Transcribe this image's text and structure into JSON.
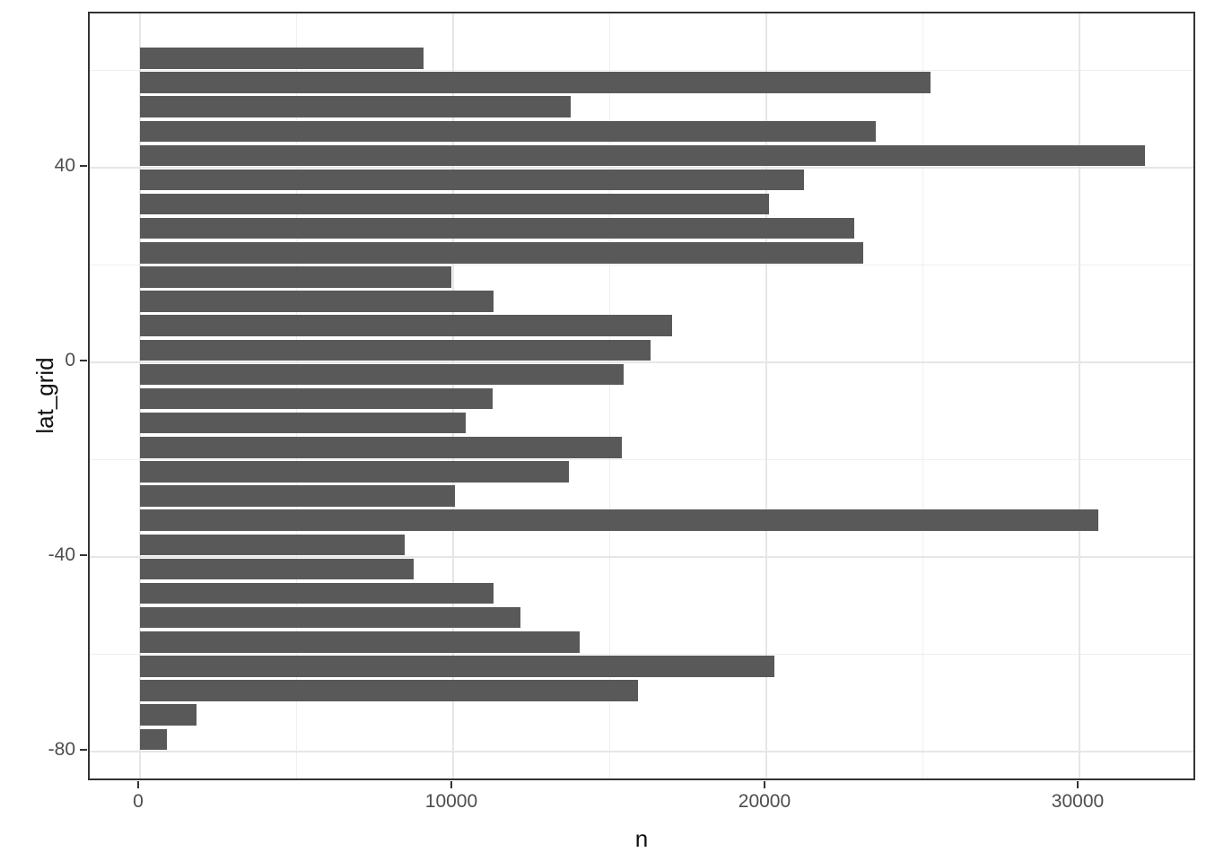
{
  "figure": {
    "background_color": "#ffffff",
    "panel": {
      "border_color": "#333333",
      "background_color": "#ffffff",
      "grid_major_color": "#e6e6e6",
      "grid_minor_color": "#efefef",
      "tick_color": "#333333"
    },
    "bar_color": "#595959",
    "axis_text_color": "#4d4d4d",
    "axis_title_color": "#111111",
    "x_axis": {
      "title": "n",
      "tick_values": [
        0,
        10000,
        20000,
        30000
      ],
      "tick_labels": [
        "0",
        "10000",
        "20000",
        "30000"
      ],
      "minor_tick_values": [
        5000,
        15000,
        25000
      ],
      "range": [
        -1604,
        33754
      ]
    },
    "y_axis": {
      "title": "lat_grid",
      "tick_values": [
        40,
        0,
        -40,
        -80
      ],
      "tick_labels": [
        "40",
        "0",
        "-40",
        "-80"
      ],
      "minor_tick_values": [
        60,
        20,
        -20,
        -60
      ],
      "range": [
        -86.3,
        71.7
      ]
    }
  },
  "chart_data": {
    "type": "bar",
    "orientation": "horizontal",
    "title": "",
    "xlabel": "n",
    "ylabel": "lat_grid",
    "grid": true,
    "legend": false,
    "bar_thickness_units": 4.35,
    "categories": [
      62.5,
      57.5,
      52.5,
      47.5,
      42.5,
      37.5,
      32.5,
      27.5,
      22.5,
      17.5,
      12.5,
      7.5,
      2.5,
      -2.5,
      -7.5,
      -12.5,
      -17.5,
      -22.5,
      -27.5,
      -32.5,
      -37.5,
      -42.5,
      -47.5,
      -52.5,
      -57.5,
      -62.5,
      -67.5,
      -72.5,
      -77.5
    ],
    "values": [
      9050,
      25250,
      13750,
      23500,
      32100,
      21200,
      20100,
      22800,
      23100,
      9950,
      11300,
      17000,
      16300,
      15450,
      11250,
      10400,
      15400,
      13700,
      10050,
      30600,
      8450,
      8750,
      11300,
      12150,
      14050,
      20250,
      15900,
      1800,
      850
    ],
    "xlim": [
      0,
      32100
    ],
    "ylim": [
      -86.3,
      71.7
    ]
  }
}
